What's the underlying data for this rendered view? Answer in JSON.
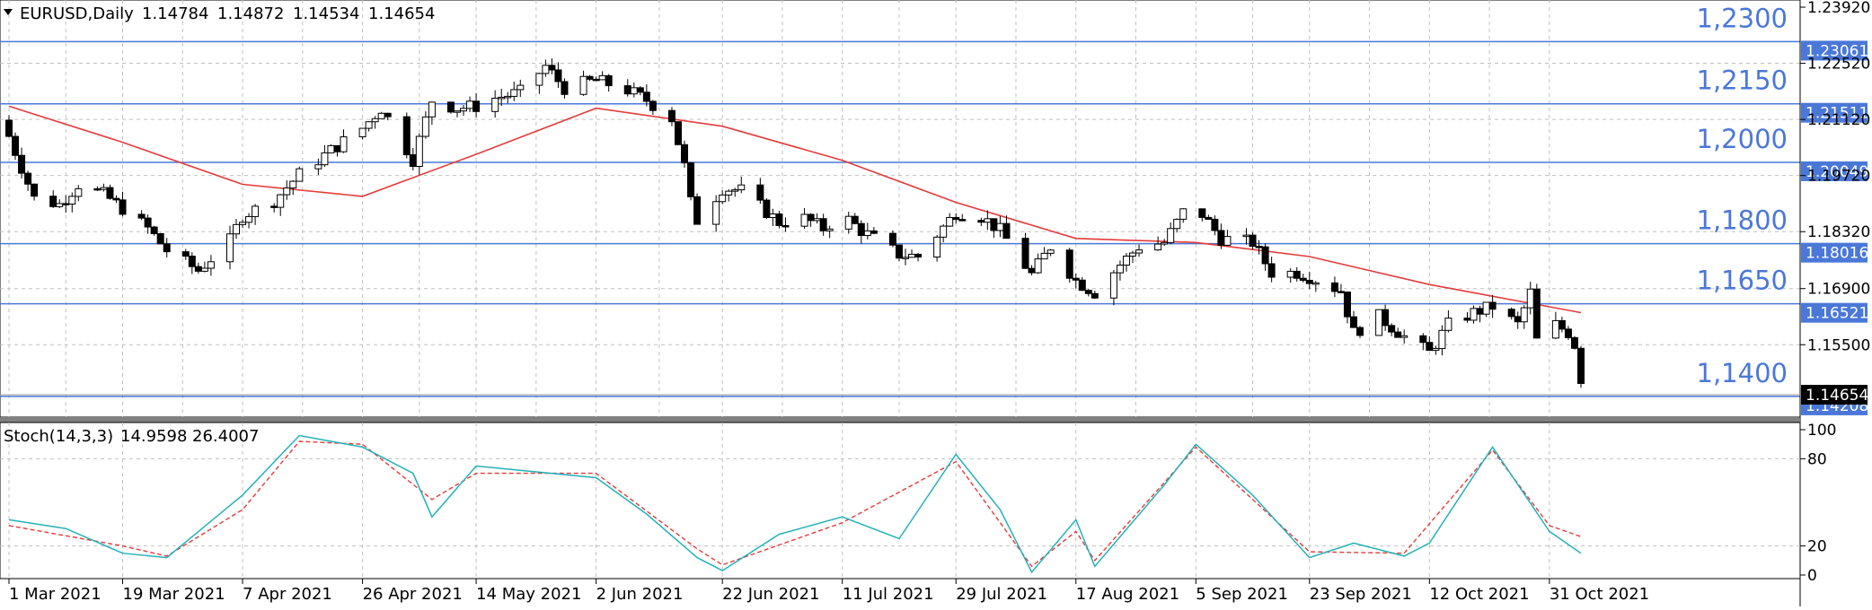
{
  "header": {
    "symbol": "EURUSD,Daily",
    "open": "1.14784",
    "high": "1.14872",
    "low": "1.14534",
    "close": "1.14654"
  },
  "indicator": {
    "name": "Stoch(14,3,3)",
    "main_value": "14.9598",
    "signal_value": "26.4007",
    "axis_labels": [
      "100",
      "80",
      "20",
      "0"
    ]
  },
  "price_axis_ticks": [
    "1.23920",
    "1.22520",
    "1.21120",
    "1.19720",
    "1.18320",
    "1.16900",
    "1.15500"
  ],
  "current_price_badge": "1.14654",
  "horizontal_levels": [
    {
      "price": 1.2306,
      "label": "1,2300",
      "badge": "1.23061"
    },
    {
      "price": 1.2151,
      "label": "1,2150",
      "badge": "1.21511"
    },
    {
      "price": 1.2005,
      "label": "1,2000",
      "badge": "1.20049"
    },
    {
      "price": 1.1802,
      "label": "1,1800",
      "badge": "1.18016"
    },
    {
      "price": 1.1652,
      "label": "1,1650",
      "badge": "1.16521"
    },
    {
      "price": 1.1421,
      "label": "1,1400",
      "badge": "1.14208"
    }
  ],
  "date_ticks": [
    "1 Mar 2021",
    "19 Mar 2021",
    "7 Apr 2021",
    "26 Apr 2021",
    "14 May 2021",
    "2 Jun 2021",
    "22 Jun 2021",
    "11 Jul 2021",
    "29 Jul 2021",
    "17 Aug 2021",
    "5 Sep 2021",
    "23 Sep 2021",
    "12 Oct 2021",
    "31 Oct 2021"
  ],
  "colors": {
    "level_line": "#4a78d8",
    "badge_bg": "#4a78d8",
    "ma_line": "#e43b3b",
    "stoch_main": "#23b2b8",
    "stoch_signal": "#e43b3b",
    "candle": "#000000",
    "grid": "#c0c0c0"
  },
  "chart_data": {
    "type": "candlestick",
    "symbol": "EURUSD",
    "timeframe": "Daily",
    "x_range": [
      "1 Mar 2021",
      "5 Nov 2021"
    ],
    "ylim": [
      1.1385,
      1.2392
    ],
    "grid": true,
    "close_anchor_series": [
      {
        "date": "1 Mar 2021",
        "close": 1.207
      },
      {
        "date": "5 Mar 2021",
        "close": 1.1915
      },
      {
        "date": "9 Mar 2021",
        "close": 1.19
      },
      {
        "date": "12 Mar 2021",
        "close": 1.195
      },
      {
        "date": "16 Mar 2021",
        "close": 1.1925
      },
      {
        "date": "19 Mar 2021",
        "close": 1.189
      },
      {
        "date": "23 Mar 2021",
        "close": 1.184
      },
      {
        "date": "26 Mar 2021",
        "close": 1.1785
      },
      {
        "date": "31 Mar 2021",
        "close": 1.1735
      },
      {
        "date": "5 Apr 2021",
        "close": 1.181
      },
      {
        "date": "7 Apr 2021",
        "close": 1.1872
      },
      {
        "date": "12 Apr 2021",
        "close": 1.191
      },
      {
        "date": "16 Apr 2021",
        "close": 1.1975
      },
      {
        "date": "21 Apr 2021",
        "close": 1.2035
      },
      {
        "date": "26 Apr 2021",
        "close": 1.209
      },
      {
        "date": "29 Apr 2021",
        "close": 1.214
      },
      {
        "date": "4 May 2021",
        "close": 1.2012
      },
      {
        "date": "7 May 2021",
        "close": 1.216
      },
      {
        "date": "11 May 2021",
        "close": 1.214
      },
      {
        "date": "14 May 2021",
        "close": 1.2145
      },
      {
        "date": "17 May 2021",
        "close": 1.2165
      },
      {
        "date": "21 May 2021",
        "close": 1.218
      },
      {
        "date": "25 May 2021",
        "close": 1.2245
      },
      {
        "date": "28 May 2021",
        "close": 1.219
      },
      {
        "date": "2 Jun 2021",
        "close": 1.221
      },
      {
        "date": "7 Jun 2021",
        "close": 1.2185
      },
      {
        "date": "10 Jun 2021",
        "close": 1.216
      },
      {
        "date": "14 Jun 2021",
        "close": 1.2115
      },
      {
        "date": "16 Jun 2021",
        "close": 1.1995
      },
      {
        "date": "17 Jun 2021",
        "close": 1.1905
      },
      {
        "date": "18 Jun 2021",
        "close": 1.186
      },
      {
        "date": "22 Jun 2021",
        "close": 1.194
      },
      {
        "date": "25 Jun 2021",
        "close": 1.1935
      },
      {
        "date": "1 Jul 2021",
        "close": 1.1855
      },
      {
        "date": "5 Jul 2021",
        "close": 1.1865
      },
      {
        "date": "8 Jul 2021",
        "close": 1.184
      },
      {
        "date": "11 Jul 2021",
        "close": 1.1875
      },
      {
        "date": "14 Jul 2021",
        "close": 1.1835
      },
      {
        "date": "20 Jul 2021",
        "close": 1.1775
      },
      {
        "date": "23 Jul 2021",
        "close": 1.177
      },
      {
        "date": "29 Jul 2021",
        "close": 1.188
      },
      {
        "date": "2 Aug 2021",
        "close": 1.187
      },
      {
        "date": "5 Aug 2021",
        "close": 1.1835
      },
      {
        "date": "10 Aug 2021",
        "close": 1.1725
      },
      {
        "date": "13 Aug 2021",
        "close": 1.1795
      },
      {
        "date": "17 Aug 2021",
        "close": 1.171
      },
      {
        "date": "20 Aug 2021",
        "close": 1.168
      },
      {
        "date": "24 Aug 2021",
        "close": 1.175
      },
      {
        "date": "27 Aug 2021",
        "close": 1.1795
      },
      {
        "date": "31 Aug 2021",
        "close": 1.1805
      },
      {
        "date": "3 Sep 2021",
        "close": 1.188
      },
      {
        "date": "6 Sep 2021",
        "close": 1.1875
      },
      {
        "date": "9 Sep 2021",
        "close": 1.1815
      },
      {
        "date": "14 Sep 2021",
        "close": 1.1805
      },
      {
        "date": "17 Sep 2021",
        "close": 1.173
      },
      {
        "date": "21 Sep 2021",
        "close": 1.173
      },
      {
        "date": "23 Sep 2021",
        "close": 1.172
      },
      {
        "date": "28 Sep 2021",
        "close": 1.1685
      },
      {
        "date": "30 Sep 2021",
        "close": 1.158
      },
      {
        "date": "4 Oct 2021",
        "close": 1.162
      },
      {
        "date": "8 Oct 2021",
        "close": 1.157
      },
      {
        "date": "12 Oct 2021",
        "close": 1.153
      },
      {
        "date": "15 Oct 2021",
        "close": 1.16
      },
      {
        "date": "19 Oct 2021",
        "close": 1.163
      },
      {
        "date": "22 Oct 2021",
        "close": 1.1645
      },
      {
        "date": "26 Oct 2021",
        "close": 1.16
      },
      {
        "date": "28 Oct 2021",
        "close": 1.168
      },
      {
        "date": "29 Oct 2021",
        "close": 1.156
      },
      {
        "date": "1 Nov 2021",
        "close": 1.16
      },
      {
        "date": "3 Nov 2021",
        "close": 1.158
      },
      {
        "date": "4 Nov 2021",
        "close": 1.155
      },
      {
        "date": "5 Nov 2021",
        "close": 1.1465
      }
    ],
    "moving_average": [
      {
        "date": "1 Mar 2021",
        "value": 1.2145
      },
      {
        "date": "19 Mar 2021",
        "value": 1.2055
      },
      {
        "date": "7 Apr 2021",
        "value": 1.195
      },
      {
        "date": "26 Apr 2021",
        "value": 1.192
      },
      {
        "date": "14 May 2021",
        "value": 1.2025
      },
      {
        "date": "2 Jun 2021",
        "value": 1.214
      },
      {
        "date": "22 Jun 2021",
        "value": 1.2095
      },
      {
        "date": "11 Jul 2021",
        "value": 1.201
      },
      {
        "date": "29 Jul 2021",
        "value": 1.1905
      },
      {
        "date": "17 Aug 2021",
        "value": 1.1815
      },
      {
        "date": "5 Sep 2021",
        "value": 1.1805
      },
      {
        "date": "23 Sep 2021",
        "value": 1.177
      },
      {
        "date": "12 Oct 2021",
        "value": 1.17
      },
      {
        "date": "5 Nov 2021",
        "value": 1.163
      }
    ],
    "stochastic": {
      "main": [
        {
          "date": "1 Mar 2021",
          "value": 38
        },
        {
          "date": "10 Mar 2021",
          "value": 32
        },
        {
          "date": "19 Mar 2021",
          "value": 15
        },
        {
          "date": "26 Mar 2021",
          "value": 12
        },
        {
          "date": "7 Apr 2021",
          "value": 55
        },
        {
          "date": "16 Apr 2021",
          "value": 96
        },
        {
          "date": "26 Apr 2021",
          "value": 88
        },
        {
          "date": "4 May 2021",
          "value": 70
        },
        {
          "date": "7 May 2021",
          "value": 40
        },
        {
          "date": "14 May 2021",
          "value": 75
        },
        {
          "date": "2 Jun 2021",
          "value": 67
        },
        {
          "date": "10 Jun 2021",
          "value": 42
        },
        {
          "date": "18 Jun 2021",
          "value": 12
        },
        {
          "date": "22 Jun 2021",
          "value": 3
        },
        {
          "date": "1 Jul 2021",
          "value": 28
        },
        {
          "date": "11 Jul 2021",
          "value": 40
        },
        {
          "date": "20 Jul 2021",
          "value": 25
        },
        {
          "date": "29 Jul 2021",
          "value": 83
        },
        {
          "date": "5 Aug 2021",
          "value": 45
        },
        {
          "date": "10 Aug 2021",
          "value": 2
        },
        {
          "date": "17 Aug 2021",
          "value": 38
        },
        {
          "date": "20 Aug 2021",
          "value": 6
        },
        {
          "date": "31 Aug 2021",
          "value": 62
        },
        {
          "date": "5 Sep 2021",
          "value": 90
        },
        {
          "date": "14 Sep 2021",
          "value": 55
        },
        {
          "date": "23 Sep 2021",
          "value": 12
        },
        {
          "date": "30 Sep 2021",
          "value": 22
        },
        {
          "date": "8 Oct 2021",
          "value": 13
        },
        {
          "date": "12 Oct 2021",
          "value": 22
        },
        {
          "date": "22 Oct 2021",
          "value": 88
        },
        {
          "date": "31 Oct 2021",
          "value": 30
        },
        {
          "date": "5 Nov 2021",
          "value": 14.9598
        }
      ],
      "signal": [
        {
          "date": "1 Mar 2021",
          "value": 34
        },
        {
          "date": "19 Mar 2021",
          "value": 20
        },
        {
          "date": "26 Mar 2021",
          "value": 13
        },
        {
          "date": "7 Apr 2021",
          "value": 45
        },
        {
          "date": "16 Apr 2021",
          "value": 92
        },
        {
          "date": "26 Apr 2021",
          "value": 90
        },
        {
          "date": "7 May 2021",
          "value": 52
        },
        {
          "date": "14 May 2021",
          "value": 70
        },
        {
          "date": "2 Jun 2021",
          "value": 70
        },
        {
          "date": "18 Jun 2021",
          "value": 18
        },
        {
          "date": "22 Jun 2021",
          "value": 7
        },
        {
          "date": "11 Jul 2021",
          "value": 36
        },
        {
          "date": "29 Jul 2021",
          "value": 78
        },
        {
          "date": "10 Aug 2021",
          "value": 6
        },
        {
          "date": "17 Aug 2021",
          "value": 30
        },
        {
          "date": "20 Aug 2021",
          "value": 10
        },
        {
          "date": "5 Sep 2021",
          "value": 88
        },
        {
          "date": "23 Sep 2021",
          "value": 16
        },
        {
          "date": "8 Oct 2021",
          "value": 15
        },
        {
          "date": "22 Oct 2021",
          "value": 86
        },
        {
          "date": "31 Oct 2021",
          "value": 34
        },
        {
          "date": "5 Nov 2021",
          "value": 26.4007
        }
      ]
    }
  }
}
